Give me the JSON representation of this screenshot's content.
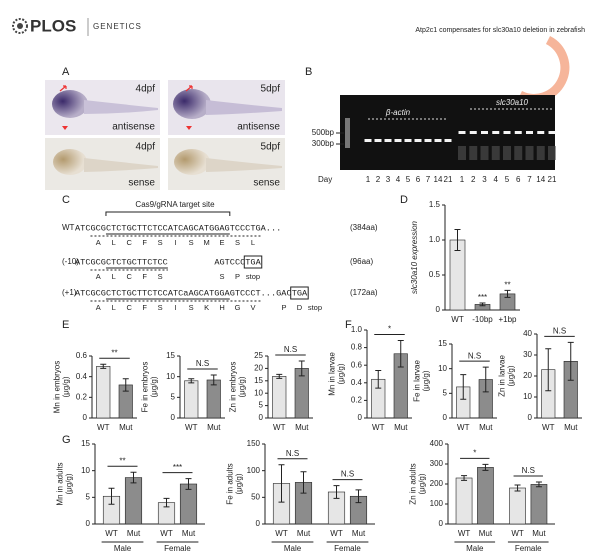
{
  "header": {
    "brand": "PLOS",
    "journal": "GENETICS",
    "running_title": "Atp2c1 compensates for slc30a10 deletion in zebrafish"
  },
  "panel_a": {
    "label": "A",
    "images": [
      {
        "stage": "4dpf",
        "probe": "antisense"
      },
      {
        "stage": "5dpf",
        "probe": "antisense"
      },
      {
        "stage": "4dpf",
        "probe": "sense"
      },
      {
        "stage": "5dpf",
        "probe": "sense"
      }
    ]
  },
  "panel_b": {
    "label": "B",
    "genes": [
      "β-actin",
      "slc30a10"
    ],
    "markers": [
      "500bp",
      "300bp"
    ],
    "lane_title": "Day",
    "lanes": [
      1,
      2,
      3,
      4,
      5,
      6,
      7,
      14,
      21
    ]
  },
  "panel_c": {
    "label": "C",
    "target_label": "Cas9/gRNA target site",
    "rows": [
      {
        "name": "WT",
        "sequence": "ATCGCGCTCTGCTTCTCCATCAGCATGGAGTCCCTGA...",
        "residues": [
          "A",
          "L",
          "C",
          "F",
          "S",
          "I",
          "S",
          "M",
          "E",
          "S",
          "L"
        ],
        "length": "(384aa)"
      },
      {
        "name": "(-10)",
        "sequence": "ATCGCGCTCTGCTTCTCC",
        "sequence_tail": "AGTCCC",
        "stop_codon": "TGA",
        "residues": [
          "A",
          "L",
          "C",
          "F",
          "S",
          "S",
          "P",
          "stop"
        ],
        "length": "(96aa)"
      },
      {
        "name": "(+1)",
        "sequence": "ATCGCGCTCTGCTTCTCCATCaAGCATGGAGTCCCT...GAC",
        "stop_codon": "TGA",
        "residues": [
          "A",
          "L",
          "C",
          "F",
          "S",
          "I",
          "S",
          "K",
          "H",
          "G",
          "V",
          "P",
          "D",
          "stop"
        ],
        "length": "(172aa)"
      }
    ]
  },
  "panel_labels": {
    "d": "D",
    "e": "E",
    "f": "F",
    "g": "G"
  },
  "chart_data": [
    {
      "type": "bar",
      "ylabel": [
        "slc30a10 expression"
      ],
      "categories": [
        "WT",
        "-10bp",
        "+1bp"
      ],
      "values": [
        1.0,
        0.08,
        0.23
      ],
      "errors": [
        0.15,
        0.02,
        0.05
      ],
      "colors": [
        "#e6e6e6",
        "#8c8c8c",
        "#8c8c8c"
      ],
      "ylim": [
        0,
        1.5
      ],
      "yticks": [
        0,
        0.5,
        {
          "value": 1,
          "label": "1.0"
        },
        1.5
      ],
      "annotations": [
        null,
        "***",
        "**"
      ]
    },
    {
      "type": "bar",
      "ylabel": [
        "Mn in embryos",
        "(μg/g)"
      ],
      "categories": [
        "WT",
        "Mut"
      ],
      "values": [
        0.5,
        0.32
      ],
      "errors": [
        0.02,
        0.06
      ],
      "colors": [
        "#e6e6e6",
        "#8c8c8c"
      ],
      "ylim": [
        0,
        0.6
      ],
      "yticks": [
        0,
        0.2,
        0.4,
        0.6
      ],
      "annotations": [
        "**"
      ]
    },
    {
      "type": "bar",
      "ylabel": [
        "Fe in embryos",
        "(μg/g)"
      ],
      "categories": [
        "WT",
        "Mut"
      ],
      "values": [
        9,
        9.2
      ],
      "errors": [
        0.5,
        1.2
      ],
      "colors": [
        "#e6e6e6",
        "#8c8c8c"
      ],
      "ylim": [
        0,
        15
      ],
      "yticks": [
        0,
        5,
        10,
        15
      ],
      "annotations": [
        "N.S"
      ]
    },
    {
      "type": "bar",
      "ylabel": [
        "Zn in embryos",
        "(μg/g)"
      ],
      "categories": [
        "WT",
        "Mut"
      ],
      "values": [
        16.8,
        20
      ],
      "errors": [
        0.8,
        3
      ],
      "colors": [
        "#e6e6e6",
        "#8c8c8c"
      ],
      "ylim": [
        0,
        25
      ],
      "yticks": [
        0,
        5,
        10,
        15,
        20,
        25
      ],
      "annotations": [
        "N.S"
      ]
    },
    {
      "type": "bar",
      "ylabel": [
        "Mn in larvae",
        "(μg/g)"
      ],
      "categories": [
        "WT",
        "Mut"
      ],
      "values": [
        0.44,
        0.73
      ],
      "errors": [
        0.1,
        0.15
      ],
      "colors": [
        "#e6e6e6",
        "#8c8c8c"
      ],
      "ylim": [
        0,
        1
      ],
      "yticks": [
        0,
        0.2,
        0.4,
        0.6,
        0.8,
        {
          "value": 1,
          "label": "1.0"
        }
      ],
      "annotations": [
        "*"
      ]
    },
    {
      "type": "bar",
      "ylabel": [
        "Fe in larvae",
        "(μg/g)"
      ],
      "categories": [
        "WT",
        "Mut"
      ],
      "values": [
        6.3,
        7.8
      ],
      "errors": [
        2.5,
        2.5
      ],
      "colors": [
        "#e6e6e6",
        "#8c8c8c"
      ],
      "ylim": [
        0,
        15
      ],
      "yticks": [
        0,
        5,
        10,
        15
      ],
      "annotations": [
        "N.S"
      ]
    },
    {
      "type": "bar",
      "ylabel": [
        "Zn in larvae",
        "(μg/g)"
      ],
      "categories": [
        "WT",
        "Mut"
      ],
      "values": [
        23,
        27
      ],
      "errors": [
        10,
        9
      ],
      "colors": [
        "#e6e6e6",
        "#8c8c8c"
      ],
      "ylim": [
        0,
        40
      ],
      "yticks": [
        0,
        10,
        20,
        30,
        40
      ],
      "annotations": [
        "N.S"
      ]
    },
    {
      "type": "bar",
      "ylabel": [
        "Mn in adults",
        "(μg/g)"
      ],
      "categories": [
        "WT",
        "Mut",
        "WT",
        "Mut"
      ],
      "groups": [
        "Male",
        "Female"
      ],
      "values": [
        5.2,
        8.7,
        4,
        7.5
      ],
      "errors": [
        1.5,
        1,
        0.8,
        1
      ],
      "colors": [
        "#e6e6e6",
        "#8c8c8c",
        "#e6e6e6",
        "#8c8c8c"
      ],
      "ylim": [
        0,
        15
      ],
      "yticks": [
        0,
        5,
        10,
        15
      ],
      "annotations": [
        "**",
        "***"
      ]
    },
    {
      "type": "bar",
      "ylabel": [
        "Fe in adults",
        "(μg/g)"
      ],
      "categories": [
        "WT",
        "Mut",
        "WT",
        "Mut"
      ],
      "groups": [
        "Male",
        "Female"
      ],
      "values": [
        76,
        78,
        60,
        52
      ],
      "errors": [
        35,
        20,
        12,
        12
      ],
      "colors": [
        "#e6e6e6",
        "#8c8c8c",
        "#e6e6e6",
        "#8c8c8c"
      ],
      "ylim": [
        0,
        150
      ],
      "yticks": [
        0,
        50,
        100,
        150
      ],
      "annotations": [
        "N.S",
        "N.S"
      ]
    },
    {
      "type": "bar",
      "ylabel": [
        "Zn in adults",
        "(μg/g)"
      ],
      "categories": [
        "WT",
        "Mut",
        "WT",
        "Mut"
      ],
      "groups": [
        "Male",
        "Female"
      ],
      "values": [
        230,
        283,
        180,
        198
      ],
      "errors": [
        12,
        15,
        15,
        12
      ],
      "colors": [
        "#e6e6e6",
        "#8c8c8c",
        "#e6e6e6",
        "#8c8c8c"
      ],
      "ylim": [
        0,
        400
      ],
      "yticks": [
        0,
        100,
        200,
        300,
        400
      ],
      "annotations": [
        "*",
        "N.S"
      ]
    }
  ]
}
